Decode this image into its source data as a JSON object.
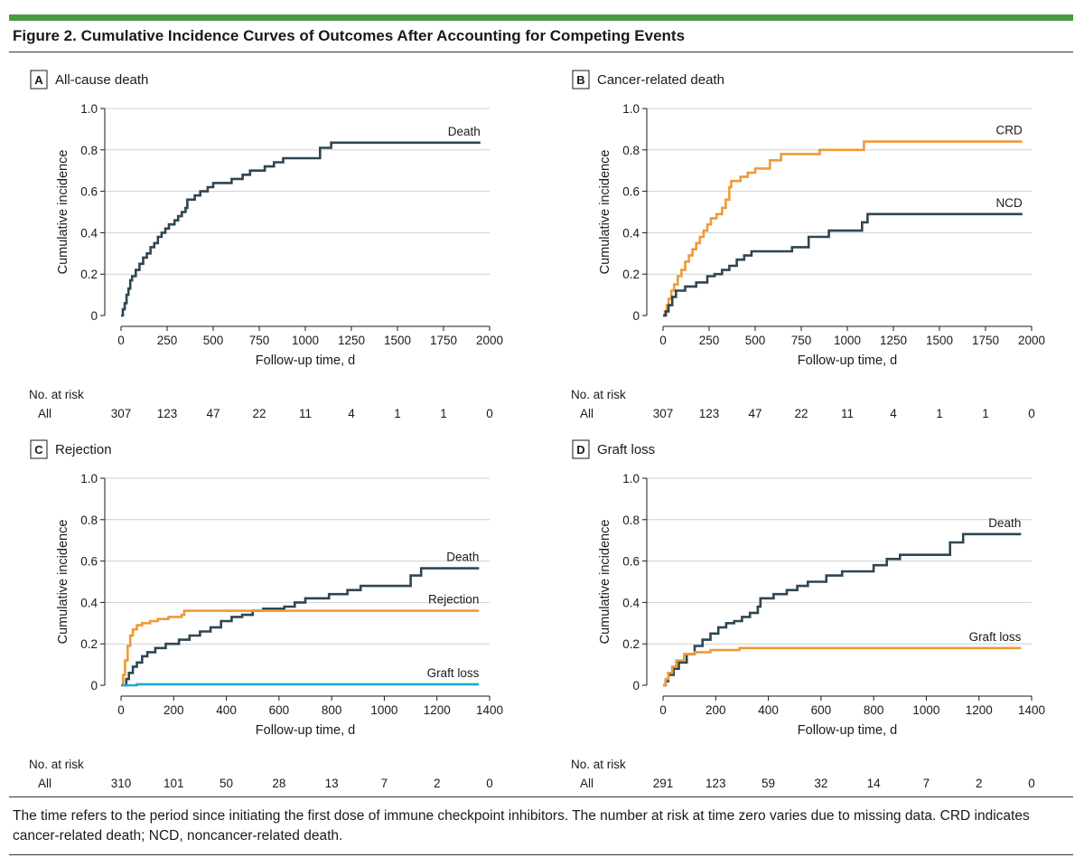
{
  "figure": {
    "title": "Figure 2. Cumulative Incidence Curves of Outcomes After Accounting for Competing Events",
    "caption": "The time refers to the period since initiating the first dose of immune checkpoint inhibitors. The number at risk at time zero varies due to missing data. CRD indicates cancer-related death; NCD, noncancer-related death.",
    "accent_color": "#4a9a46"
  },
  "chart_data": [
    {
      "id": "A",
      "panel_letter": "A",
      "title": "All-cause death",
      "type": "line",
      "step": true,
      "xlabel": "Follow-up time, d",
      "ylabel": "Cumulative incidence",
      "xlim": [
        0,
        2000
      ],
      "ylim": [
        0,
        1.0
      ],
      "xticks": [
        0,
        250,
        500,
        750,
        1000,
        1250,
        1500,
        1750,
        2000
      ],
      "yticks": [
        0,
        0.2,
        0.4,
        0.6,
        0.8,
        1.0
      ],
      "ytick_labels": [
        "0",
        "0.2",
        "0.4",
        "0.6",
        "0.8",
        "1.0"
      ],
      "series": [
        {
          "name": "Death",
          "color": "#2d4651",
          "points": [
            [
              0,
              0
            ],
            [
              10,
              0.03
            ],
            [
              20,
              0.06
            ],
            [
              30,
              0.1
            ],
            [
              40,
              0.13
            ],
            [
              50,
              0.17
            ],
            [
              60,
              0.19
            ],
            [
              80,
              0.22
            ],
            [
              100,
              0.25
            ],
            [
              120,
              0.28
            ],
            [
              140,
              0.3
            ],
            [
              160,
              0.33
            ],
            [
              180,
              0.35
            ],
            [
              200,
              0.38
            ],
            [
              220,
              0.4
            ],
            [
              240,
              0.42
            ],
            [
              260,
              0.44
            ],
            [
              290,
              0.46
            ],
            [
              310,
              0.48
            ],
            [
              330,
              0.5
            ],
            [
              350,
              0.52
            ],
            [
              360,
              0.56
            ],
            [
              400,
              0.58
            ],
            [
              430,
              0.6
            ],
            [
              470,
              0.62
            ],
            [
              500,
              0.64
            ],
            [
              560,
              0.64
            ],
            [
              600,
              0.66
            ],
            [
              660,
              0.68
            ],
            [
              700,
              0.7
            ],
            [
              780,
              0.72
            ],
            [
              830,
              0.74
            ],
            [
              880,
              0.76
            ],
            [
              1080,
              0.81
            ],
            [
              1140,
              0.835
            ],
            [
              1950,
              0.835
            ]
          ]
        }
      ],
      "risk_header": "No. at risk",
      "risk_row_label": "All",
      "risk_x": [
        0,
        250,
        500,
        750,
        1000,
        1250,
        1500,
        1750,
        2000
      ],
      "risk_values": [
        "307",
        "123",
        "47",
        "22",
        "11",
        "4",
        "1",
        "1",
        "0"
      ]
    },
    {
      "id": "B",
      "panel_letter": "B",
      "title": "Cancer-related death",
      "type": "line",
      "step": true,
      "xlabel": "Follow-up time, d",
      "ylabel": "Cumulative incidence",
      "xlim": [
        0,
        2000
      ],
      "ylim": [
        0,
        1.0
      ],
      "xticks": [
        0,
        250,
        500,
        750,
        1000,
        1250,
        1500,
        1750,
        2000
      ],
      "yticks": [
        0,
        0.2,
        0.4,
        0.6,
        0.8,
        1.0
      ],
      "ytick_labels": [
        "0",
        "0.2",
        "0.4",
        "0.6",
        "0.8",
        "1.0"
      ],
      "series": [
        {
          "name": "CRD",
          "color": "#ef9a37",
          "points": [
            [
              0,
              0
            ],
            [
              10,
              0.02
            ],
            [
              20,
              0.05
            ],
            [
              30,
              0.08
            ],
            [
              45,
              0.12
            ],
            [
              60,
              0.15
            ],
            [
              80,
              0.19
            ],
            [
              100,
              0.22
            ],
            [
              120,
              0.26
            ],
            [
              140,
              0.29
            ],
            [
              160,
              0.32
            ],
            [
              180,
              0.35
            ],
            [
              200,
              0.38
            ],
            [
              220,
              0.41
            ],
            [
              240,
              0.44
            ],
            [
              260,
              0.47
            ],
            [
              290,
              0.49
            ],
            [
              320,
              0.52
            ],
            [
              340,
              0.56
            ],
            [
              360,
              0.62
            ],
            [
              370,
              0.65
            ],
            [
              420,
              0.67
            ],
            [
              460,
              0.69
            ],
            [
              500,
              0.71
            ],
            [
              580,
              0.75
            ],
            [
              640,
              0.78
            ],
            [
              850,
              0.8
            ],
            [
              1090,
              0.84
            ],
            [
              1950,
              0.84
            ]
          ]
        },
        {
          "name": "NCD",
          "color": "#2d4651",
          "points": [
            [
              0,
              0
            ],
            [
              15,
              0.02
            ],
            [
              30,
              0.05
            ],
            [
              50,
              0.09
            ],
            [
              70,
              0.12
            ],
            [
              120,
              0.14
            ],
            [
              180,
              0.16
            ],
            [
              240,
              0.19
            ],
            [
              280,
              0.2
            ],
            [
              320,
              0.22
            ],
            [
              360,
              0.24
            ],
            [
              400,
              0.27
            ],
            [
              440,
              0.29
            ],
            [
              480,
              0.31
            ],
            [
              700,
              0.33
            ],
            [
              790,
              0.38
            ],
            [
              900,
              0.41
            ],
            [
              1080,
              0.45
            ],
            [
              1110,
              0.49
            ],
            [
              1950,
              0.49
            ]
          ]
        }
      ],
      "risk_header": "No. at risk",
      "risk_row_label": "All",
      "risk_x": [
        0,
        250,
        500,
        750,
        1000,
        1250,
        1500,
        1750,
        2000
      ],
      "risk_values": [
        "307",
        "123",
        "47",
        "22",
        "11",
        "4",
        "1",
        "1",
        "0"
      ]
    },
    {
      "id": "C",
      "panel_letter": "C",
      "title": "Rejection",
      "type": "line",
      "step": true,
      "xlabel": "Follow-up time, d",
      "ylabel": "Cumulative incidence",
      "xlim": [
        0,
        1400
      ],
      "ylim": [
        0,
        1.0
      ],
      "xticks": [
        0,
        200,
        400,
        600,
        800,
        1000,
        1200,
        1400
      ],
      "yticks": [
        0,
        0.2,
        0.4,
        0.6,
        0.8,
        1.0
      ],
      "ytick_labels": [
        "0",
        "0.2",
        "0.4",
        "0.6",
        "0.8",
        "1.0"
      ],
      "series": [
        {
          "name": "Death",
          "color": "#2d4651",
          "points": [
            [
              0,
              0
            ],
            [
              20,
              0.03
            ],
            [
              30,
              0.06
            ],
            [
              45,
              0.09
            ],
            [
              60,
              0.11
            ],
            [
              80,
              0.14
            ],
            [
              100,
              0.16
            ],
            [
              130,
              0.18
            ],
            [
              170,
              0.2
            ],
            [
              220,
              0.22
            ],
            [
              260,
              0.24
            ],
            [
              300,
              0.26
            ],
            [
              340,
              0.28
            ],
            [
              380,
              0.31
            ],
            [
              420,
              0.33
            ],
            [
              460,
              0.34
            ],
            [
              500,
              0.36
            ],
            [
              540,
              0.37
            ],
            [
              620,
              0.38
            ],
            [
              660,
              0.4
            ],
            [
              700,
              0.42
            ],
            [
              790,
              0.44
            ],
            [
              860,
              0.46
            ],
            [
              910,
              0.48
            ],
            [
              1100,
              0.53
            ],
            [
              1140,
              0.565
            ],
            [
              1360,
              0.565
            ]
          ]
        },
        {
          "name": "Rejection",
          "color": "#ef9a37",
          "points": [
            [
              0,
              0
            ],
            [
              8,
              0.05
            ],
            [
              15,
              0.12
            ],
            [
              25,
              0.19
            ],
            [
              35,
              0.24
            ],
            [
              45,
              0.27
            ],
            [
              60,
              0.29
            ],
            [
              80,
              0.3
            ],
            [
              110,
              0.31
            ],
            [
              140,
              0.32
            ],
            [
              180,
              0.33
            ],
            [
              230,
              0.34
            ],
            [
              240,
              0.36
            ],
            [
              1360,
              0.36
            ]
          ]
        },
        {
          "name": "Graft loss",
          "color": "#1ea9d7",
          "points": [
            [
              0,
              0
            ],
            [
              60,
              0.005
            ],
            [
              1360,
              0.005
            ]
          ]
        }
      ],
      "risk_header": "No. at risk",
      "risk_row_label": "All",
      "risk_x": [
        0,
        200,
        400,
        600,
        800,
        1000,
        1200,
        1400
      ],
      "risk_values": [
        "310",
        "101",
        "50",
        "28",
        "13",
        "7",
        "2",
        "0"
      ]
    },
    {
      "id": "D",
      "panel_letter": "D",
      "title": "Graft loss",
      "type": "line",
      "step": true,
      "xlabel": "Follow-up time, d",
      "ylabel": "Cumulative incidence",
      "xlim": [
        0,
        1400
      ],
      "ylim": [
        0,
        1.0
      ],
      "xticks": [
        0,
        200,
        400,
        600,
        800,
        1000,
        1200,
        1400
      ],
      "yticks": [
        0,
        0.2,
        0.4,
        0.6,
        0.8,
        1.0
      ],
      "ytick_labels": [
        "0",
        "0.2",
        "0.4",
        "0.6",
        "0.8",
        "1.0"
      ],
      "series": [
        {
          "name": "Death",
          "color": "#2d4651",
          "points": [
            [
              0,
              0
            ],
            [
              10,
              0.02
            ],
            [
              20,
              0.05
            ],
            [
              40,
              0.08
            ],
            [
              60,
              0.11
            ],
            [
              90,
              0.15
            ],
            [
              120,
              0.19
            ],
            [
              150,
              0.22
            ],
            [
              180,
              0.25
            ],
            [
              210,
              0.28
            ],
            [
              240,
              0.3
            ],
            [
              270,
              0.31
            ],
            [
              300,
              0.33
            ],
            [
              330,
              0.35
            ],
            [
              360,
              0.38
            ],
            [
              370,
              0.42
            ],
            [
              420,
              0.44
            ],
            [
              470,
              0.46
            ],
            [
              510,
              0.48
            ],
            [
              550,
              0.5
            ],
            [
              620,
              0.53
            ],
            [
              680,
              0.55
            ],
            [
              800,
              0.58
            ],
            [
              850,
              0.61
            ],
            [
              900,
              0.63
            ],
            [
              1090,
              0.69
            ],
            [
              1140,
              0.73
            ],
            [
              1360,
              0.73
            ]
          ]
        },
        {
          "name": "Graft loss",
          "color": "#ef9a37",
          "points": [
            [
              0,
              0
            ],
            [
              10,
              0.03
            ],
            [
              20,
              0.06
            ],
            [
              35,
              0.09
            ],
            [
              50,
              0.12
            ],
            [
              80,
              0.15
            ],
            [
              120,
              0.16
            ],
            [
              180,
              0.17
            ],
            [
              290,
              0.18
            ],
            [
              1360,
              0.18
            ]
          ]
        }
      ],
      "risk_header": "No. at risk",
      "risk_row_label": "All",
      "risk_x": [
        0,
        200,
        400,
        600,
        800,
        1000,
        1200,
        1400
      ],
      "risk_values": [
        "291",
        "123",
        "59",
        "32",
        "14",
        "7",
        "2",
        "0"
      ]
    }
  ]
}
